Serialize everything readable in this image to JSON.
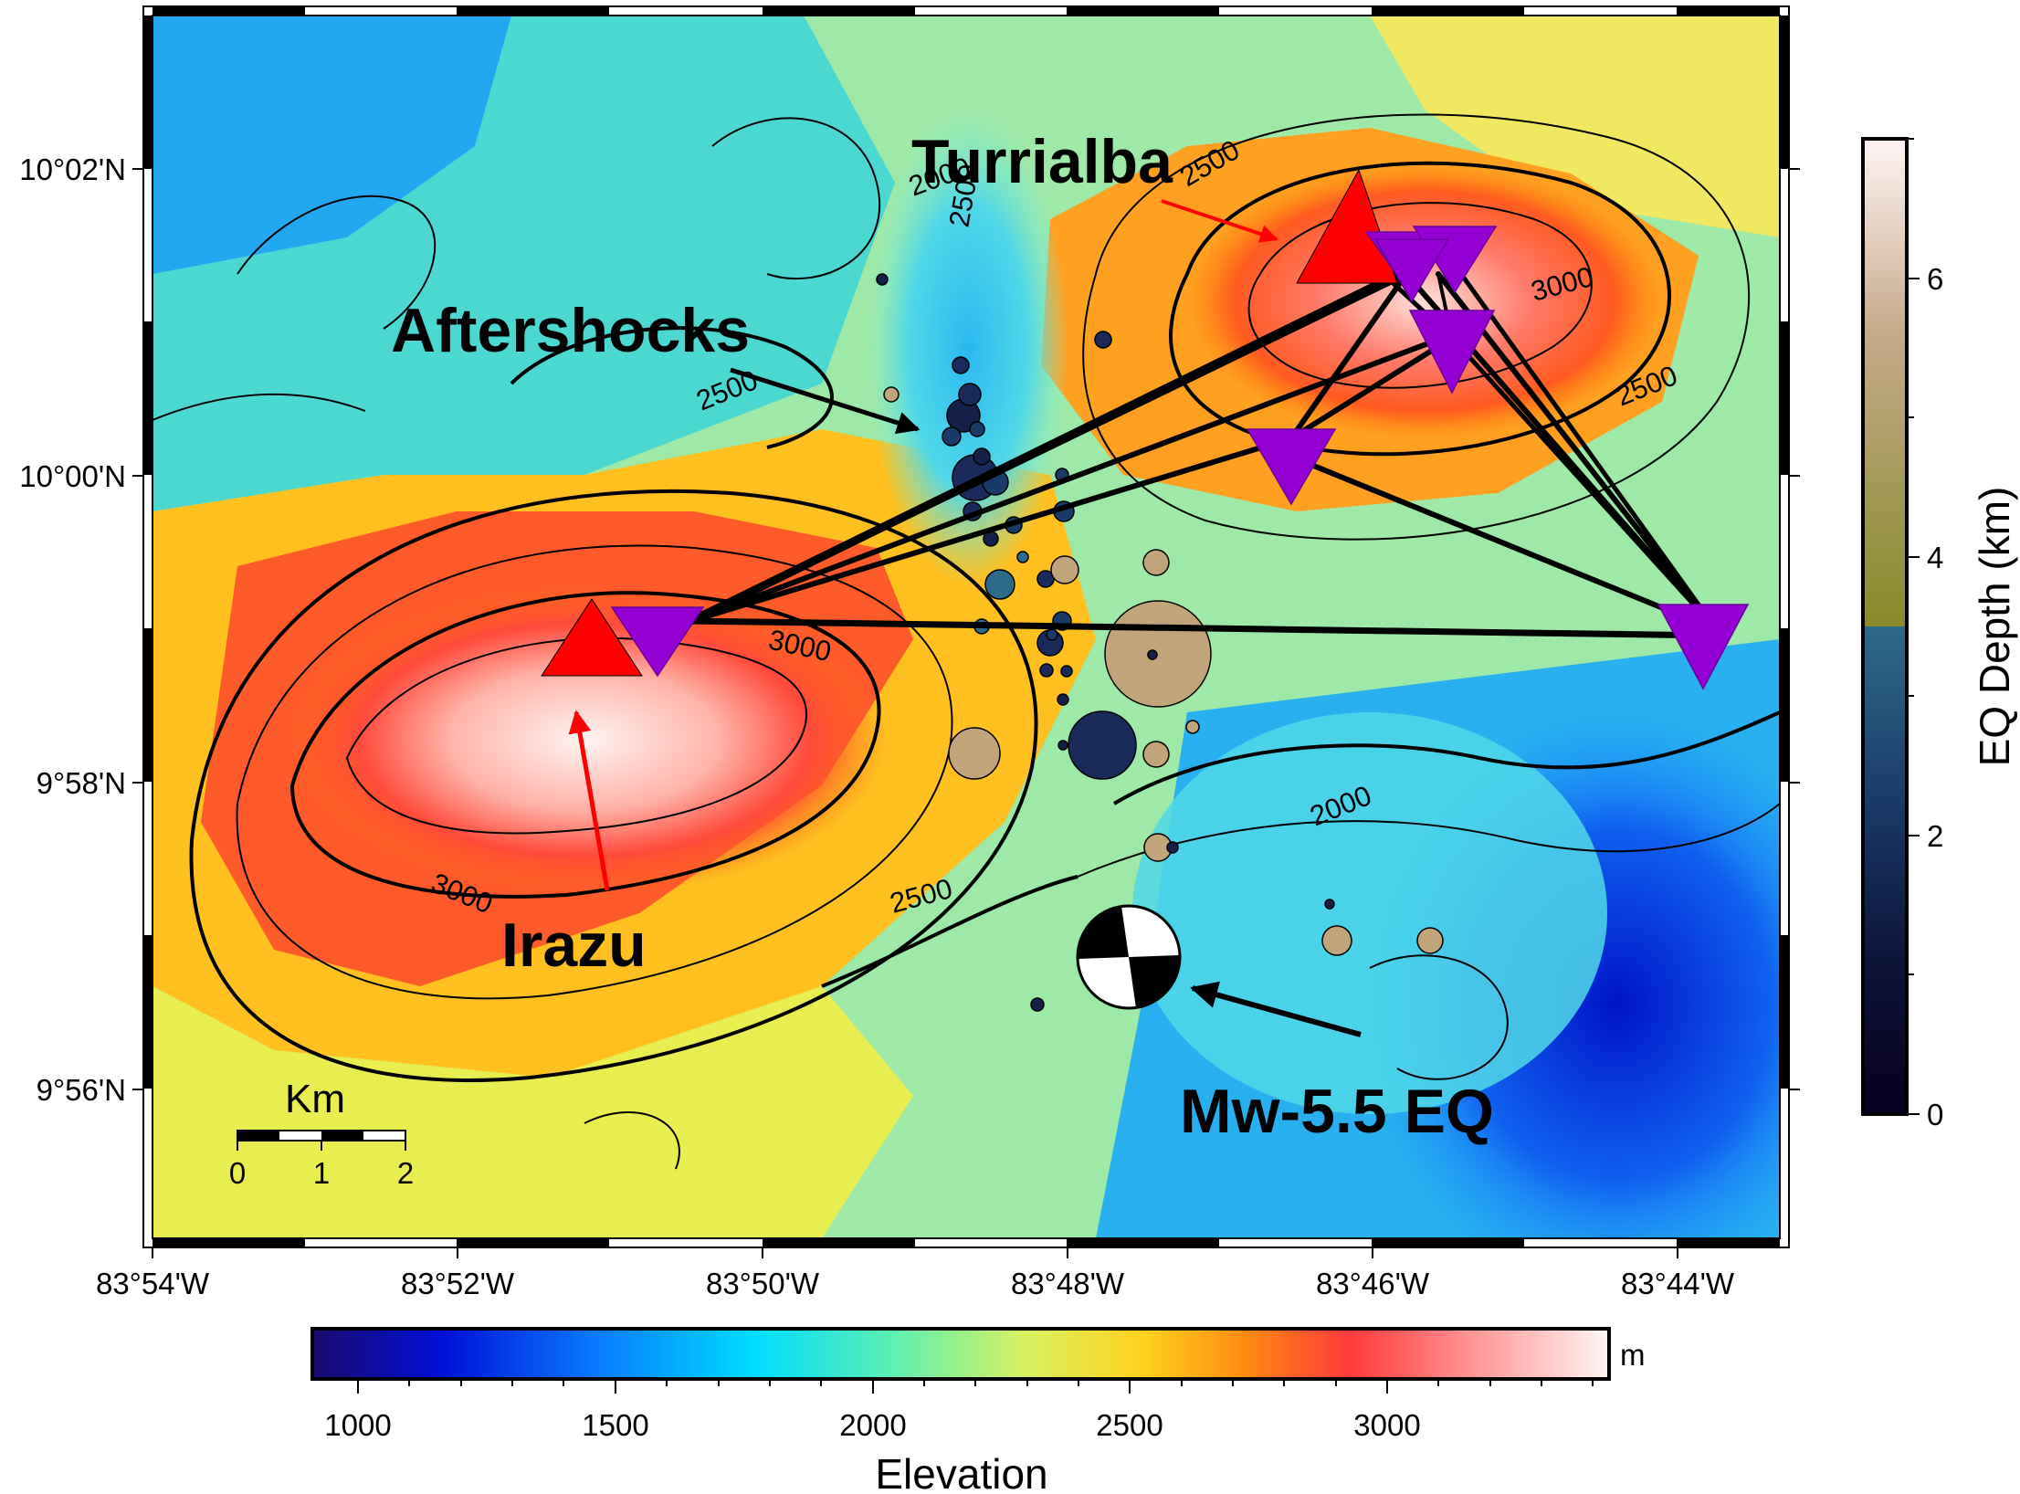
{
  "map": {
    "lon_ticks": [
      "83°54'W",
      "83°52'W",
      "83°50'W",
      "83°48'W",
      "83°46'W",
      "83°44'W"
    ],
    "lat_ticks": [
      "10°02'N",
      "10°00'N",
      "9°58'N",
      "9°56'N"
    ],
    "labels": {
      "turrialba": "Turrialba",
      "aftershocks": "Aftershocks",
      "irazu": "Irazu",
      "eq": "Mw-5.5 EQ"
    },
    "contour_labels": [
      "2000",
      "2500",
      "2500",
      "3000",
      "3000",
      "2500",
      "3000",
      "2000",
      "2500",
      "2500"
    ],
    "scale_bar": {
      "title": "Km",
      "ticks": [
        "0",
        "1",
        "2"
      ]
    },
    "colors": {
      "volcano": "#ff0000",
      "station": "#9400d3",
      "arrow_red": "#ff0000",
      "arrow_black": "#000000",
      "ray": "#000000"
    },
    "volcanoes": [
      {
        "name": "Turrialba",
        "lon": -83.7667,
        "lat": 10.025
      },
      {
        "name": "Irazu",
        "lon": -83.852,
        "lat": 9.979
      }
    ],
    "event": {
      "lon": -83.7995,
      "lat": 9.95
    }
  },
  "depth_colorbar": {
    "title": "EQ Depth (km)",
    "ticks": [
      "0",
      "2",
      "4",
      "6"
    ],
    "range": [
      0,
      7
    ]
  },
  "elevation_colorbar": {
    "title": "Elevation",
    "unit": "m",
    "ticks": [
      "1000",
      "1500",
      "2000",
      "2500",
      "3000"
    ],
    "range": [
      910,
      3430
    ]
  }
}
